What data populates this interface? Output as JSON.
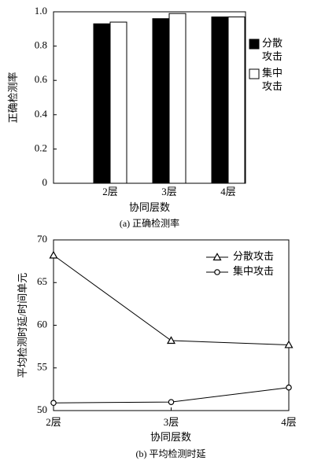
{
  "chart_data": [
    {
      "type": "bar",
      "ylabel": "正确检测率",
      "xlabel": "协同层数",
      "caption": "(a) 正确检测率",
      "categories": [
        "2层",
        "3层",
        "4层"
      ],
      "series": [
        {
          "name": "分散攻击",
          "color": "#000000",
          "values": [
            0.93,
            0.96,
            0.97
          ]
        },
        {
          "name": "集中攻击",
          "color": "#ffffff",
          "values": [
            0.94,
            0.99,
            0.97
          ]
        }
      ],
      "ylim": [
        0,
        1
      ],
      "yticks": [
        0,
        0.2,
        0.4,
        0.6,
        0.8,
        {
          "value": 1,
          "label": "1.0"
        }
      ],
      "legend": "right"
    },
    {
      "type": "line",
      "ylabel": "平均检测时延/时间单元",
      "xlabel": "协同层数",
      "caption": "(b) 平均检测时延",
      "categories": [
        "2层",
        "3层",
        "4层"
      ],
      "series": [
        {
          "name": "分散攻击",
          "color": "#000000",
          "marker": "triangle",
          "values": [
            68.2,
            58.2,
            57.7
          ]
        },
        {
          "name": "集中攻击",
          "color": "#000000",
          "marker": "circle",
          "values": [
            50.9,
            51.0,
            52.7
          ]
        }
      ],
      "ylim": [
        50,
        70
      ],
      "yticks": [
        50,
        55,
        60,
        65,
        70
      ],
      "legend": "upper right"
    }
  ]
}
